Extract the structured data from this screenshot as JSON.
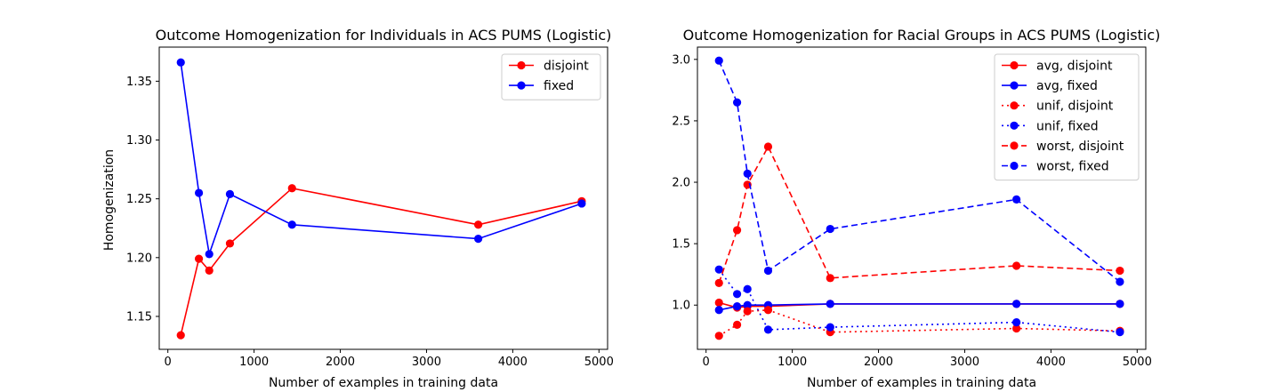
{
  "chart_data": [
    {
      "type": "line",
      "title": "Outcome Homogenization for Individuals in ACS PUMS (Logistic)",
      "xlabel": "Number of examples in training data",
      "ylabel": "Homogenization",
      "xlim": [
        -100,
        5100
      ],
      "ylim": [
        1.122,
        1.379
      ],
      "xticks": [
        0,
        1000,
        2000,
        3000,
        4000,
        5000
      ],
      "xtick_labels": [
        "0",
        "1000",
        "2000",
        "3000",
        "4000",
        "5000"
      ],
      "yticks": [
        1.15,
        1.2,
        1.25,
        1.3,
        1.35
      ],
      "ytick_labels": [
        "1.15",
        "1.20",
        "1.25",
        "1.30",
        "1.35"
      ],
      "legend_position": "top-right",
      "x": [
        150,
        360,
        480,
        720,
        1440,
        3600,
        4800
      ],
      "series": [
        {
          "name": "disjoint",
          "color": "#ff0000",
          "dash": "solid",
          "values": [
            1.134,
            1.199,
            1.189,
            1.212,
            1.259,
            1.228,
            1.248
          ]
        },
        {
          "name": "fixed",
          "color": "#0000ff",
          "dash": "solid",
          "values": [
            1.366,
            1.255,
            1.203,
            1.254,
            1.228,
            1.216,
            1.246
          ]
        }
      ]
    },
    {
      "type": "line",
      "title": "Outcome Homogenization for Racial Groups in ACS PUMS (Logistic)",
      "xlabel": "Number of examples in training data",
      "ylabel": "",
      "xlim": [
        -100,
        5100
      ],
      "ylim": [
        0.64,
        3.1
      ],
      "xticks": [
        0,
        1000,
        2000,
        3000,
        4000,
        5000
      ],
      "xtick_labels": [
        "0",
        "1000",
        "2000",
        "3000",
        "4000",
        "5000"
      ],
      "yticks": [
        1.0,
        1.5,
        2.0,
        2.5,
        3.0
      ],
      "ytick_labels": [
        "1.0",
        "1.5",
        "2.0",
        "2.5",
        "3.0"
      ],
      "legend_position": "top-right",
      "x": [
        150,
        360,
        480,
        720,
        1440,
        3600,
        4800
      ],
      "series": [
        {
          "name": "avg, disjoint",
          "color": "#ff0000",
          "dash": "solid",
          "values": [
            1.02,
            0.98,
            0.99,
            0.99,
            1.01,
            1.01,
            1.01
          ]
        },
        {
          "name": "avg, fixed",
          "color": "#0000ff",
          "dash": "solid",
          "values": [
            0.96,
            0.99,
            1.0,
            1.0,
            1.01,
            1.01,
            1.01
          ]
        },
        {
          "name": "unif, disjoint",
          "color": "#ff0000",
          "dash": "dotted",
          "values": [
            0.75,
            0.84,
            0.95,
            0.96,
            0.78,
            0.81,
            0.79
          ]
        },
        {
          "name": "unif, fixed",
          "color": "#0000ff",
          "dash": "dotted",
          "values": [
            1.29,
            1.09,
            1.13,
            0.8,
            0.82,
            0.86,
            0.78
          ]
        },
        {
          "name": "worst, disjoint",
          "color": "#ff0000",
          "dash": "dashed",
          "values": [
            1.18,
            1.61,
            1.98,
            2.29,
            1.22,
            1.32,
            1.28
          ]
        },
        {
          "name": "worst, fixed",
          "color": "#0000ff",
          "dash": "dashed",
          "values": [
            2.99,
            2.65,
            2.07,
            1.28,
            1.62,
            1.86,
            1.19
          ]
        }
      ]
    }
  ]
}
